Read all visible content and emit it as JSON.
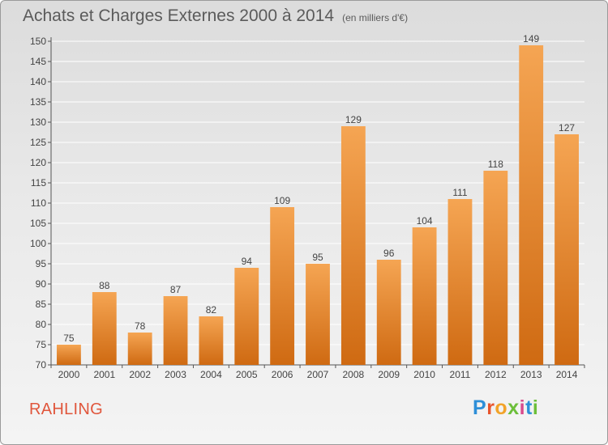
{
  "header": {
    "title": "Achats et Charges Externes 2000 à 2014",
    "unit": "(en milliers d'€)"
  },
  "footer": {
    "commune": "RAHLING",
    "brand": "Proxiti",
    "brand_colors": [
      "#2e8fd8",
      "#e8542c",
      "#f2a32a",
      "#6cbf3a",
      "#d94a8c",
      "#2e8fd8",
      "#6cbf3a"
    ]
  },
  "colors": {
    "bar_top": "#f5a553",
    "bar_bottom": "#cf6a12",
    "grid": "#ffffff",
    "text": "#444444"
  },
  "chart_data": {
    "type": "bar",
    "title": "Achats et Charges Externes 2000 à 2014",
    "subtitle": "(en milliers d'€)",
    "categories": [
      "2000",
      "2001",
      "2002",
      "2003",
      "2004",
      "2005",
      "2006",
      "2007",
      "2008",
      "2009",
      "2010",
      "2011",
      "2012",
      "2013",
      "2014"
    ],
    "values": [
      75,
      88,
      78,
      87,
      82,
      94,
      109,
      95,
      129,
      96,
      104,
      111,
      118,
      149,
      127
    ],
    "ylim": [
      70,
      150
    ],
    "yticks": [
      70,
      75,
      80,
      85,
      90,
      95,
      100,
      105,
      110,
      115,
      120,
      125,
      130,
      135,
      140,
      145,
      150
    ],
    "grid": true,
    "legend": "none"
  }
}
